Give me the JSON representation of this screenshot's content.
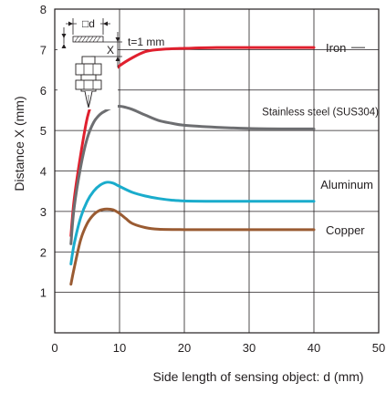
{
  "chart_data": {
    "type": "line",
    "title": "",
    "xlabel": "Side length of sensing object: d (mm)",
    "ylabel": "Distance X (mm)",
    "xlim": [
      0,
      50
    ],
    "ylim": [
      0,
      8
    ],
    "x_ticks": [
      "0",
      "10",
      "20",
      "30",
      "40",
      "50"
    ],
    "y_ticks": [
      "1",
      "2",
      "3",
      "4",
      "5",
      "6",
      "7",
      "8"
    ],
    "grid": true,
    "legend": "labels placed directly at right end of each curve",
    "series": [
      {
        "name": "Iron",
        "color": "#e0202e",
        "x": [
          2.5,
          3,
          4,
          5,
          6,
          7,
          8,
          9,
          10,
          12,
          14,
          16,
          18,
          20,
          25,
          30,
          35,
          40
        ],
        "y": [
          2.4,
          3.3,
          4.4,
          5.3,
          5.8,
          6.1,
          6.3,
          6.45,
          6.6,
          6.8,
          6.95,
          7.0,
          7.02,
          7.03,
          7.05,
          7.05,
          7.05,
          7.05
        ]
      },
      {
        "name": "Stainless steel (SUS304)",
        "color": "#6d6e71",
        "x": [
          2.5,
          3,
          4,
          5,
          6,
          7,
          8,
          9,
          10,
          11,
          12,
          14,
          16,
          18,
          20,
          25,
          30,
          35,
          40
        ],
        "y": [
          2.2,
          3.1,
          4.1,
          4.8,
          5.2,
          5.4,
          5.5,
          5.58,
          5.6,
          5.57,
          5.52,
          5.38,
          5.25,
          5.18,
          5.13,
          5.08,
          5.05,
          5.04,
          5.04
        ]
      },
      {
        "name": "Aluminum",
        "color": "#1aaccc",
        "x": [
          2.5,
          3,
          4,
          5,
          6,
          7,
          8,
          9,
          10,
          12,
          14,
          16,
          18,
          20,
          25,
          30,
          35,
          40
        ],
        "y": [
          1.7,
          2.2,
          2.85,
          3.25,
          3.5,
          3.65,
          3.72,
          3.7,
          3.62,
          3.47,
          3.38,
          3.32,
          3.28,
          3.26,
          3.25,
          3.25,
          3.25,
          3.25
        ]
      },
      {
        "name": "Copper",
        "color": "#9a5b32",
        "x": [
          2.5,
          3,
          4,
          5,
          6,
          7,
          8,
          9,
          10,
          11,
          12,
          14,
          16,
          20,
          25,
          30,
          35,
          40
        ],
        "y": [
          1.2,
          1.6,
          2.3,
          2.7,
          2.92,
          3.03,
          3.06,
          3.04,
          2.95,
          2.82,
          2.7,
          2.6,
          2.56,
          2.55,
          2.55,
          2.55,
          2.55,
          2.55
        ]
      }
    ],
    "inset": {
      "d_label": "□d",
      "x_label": "X",
      "t_label": "t=1 mm"
    }
  }
}
